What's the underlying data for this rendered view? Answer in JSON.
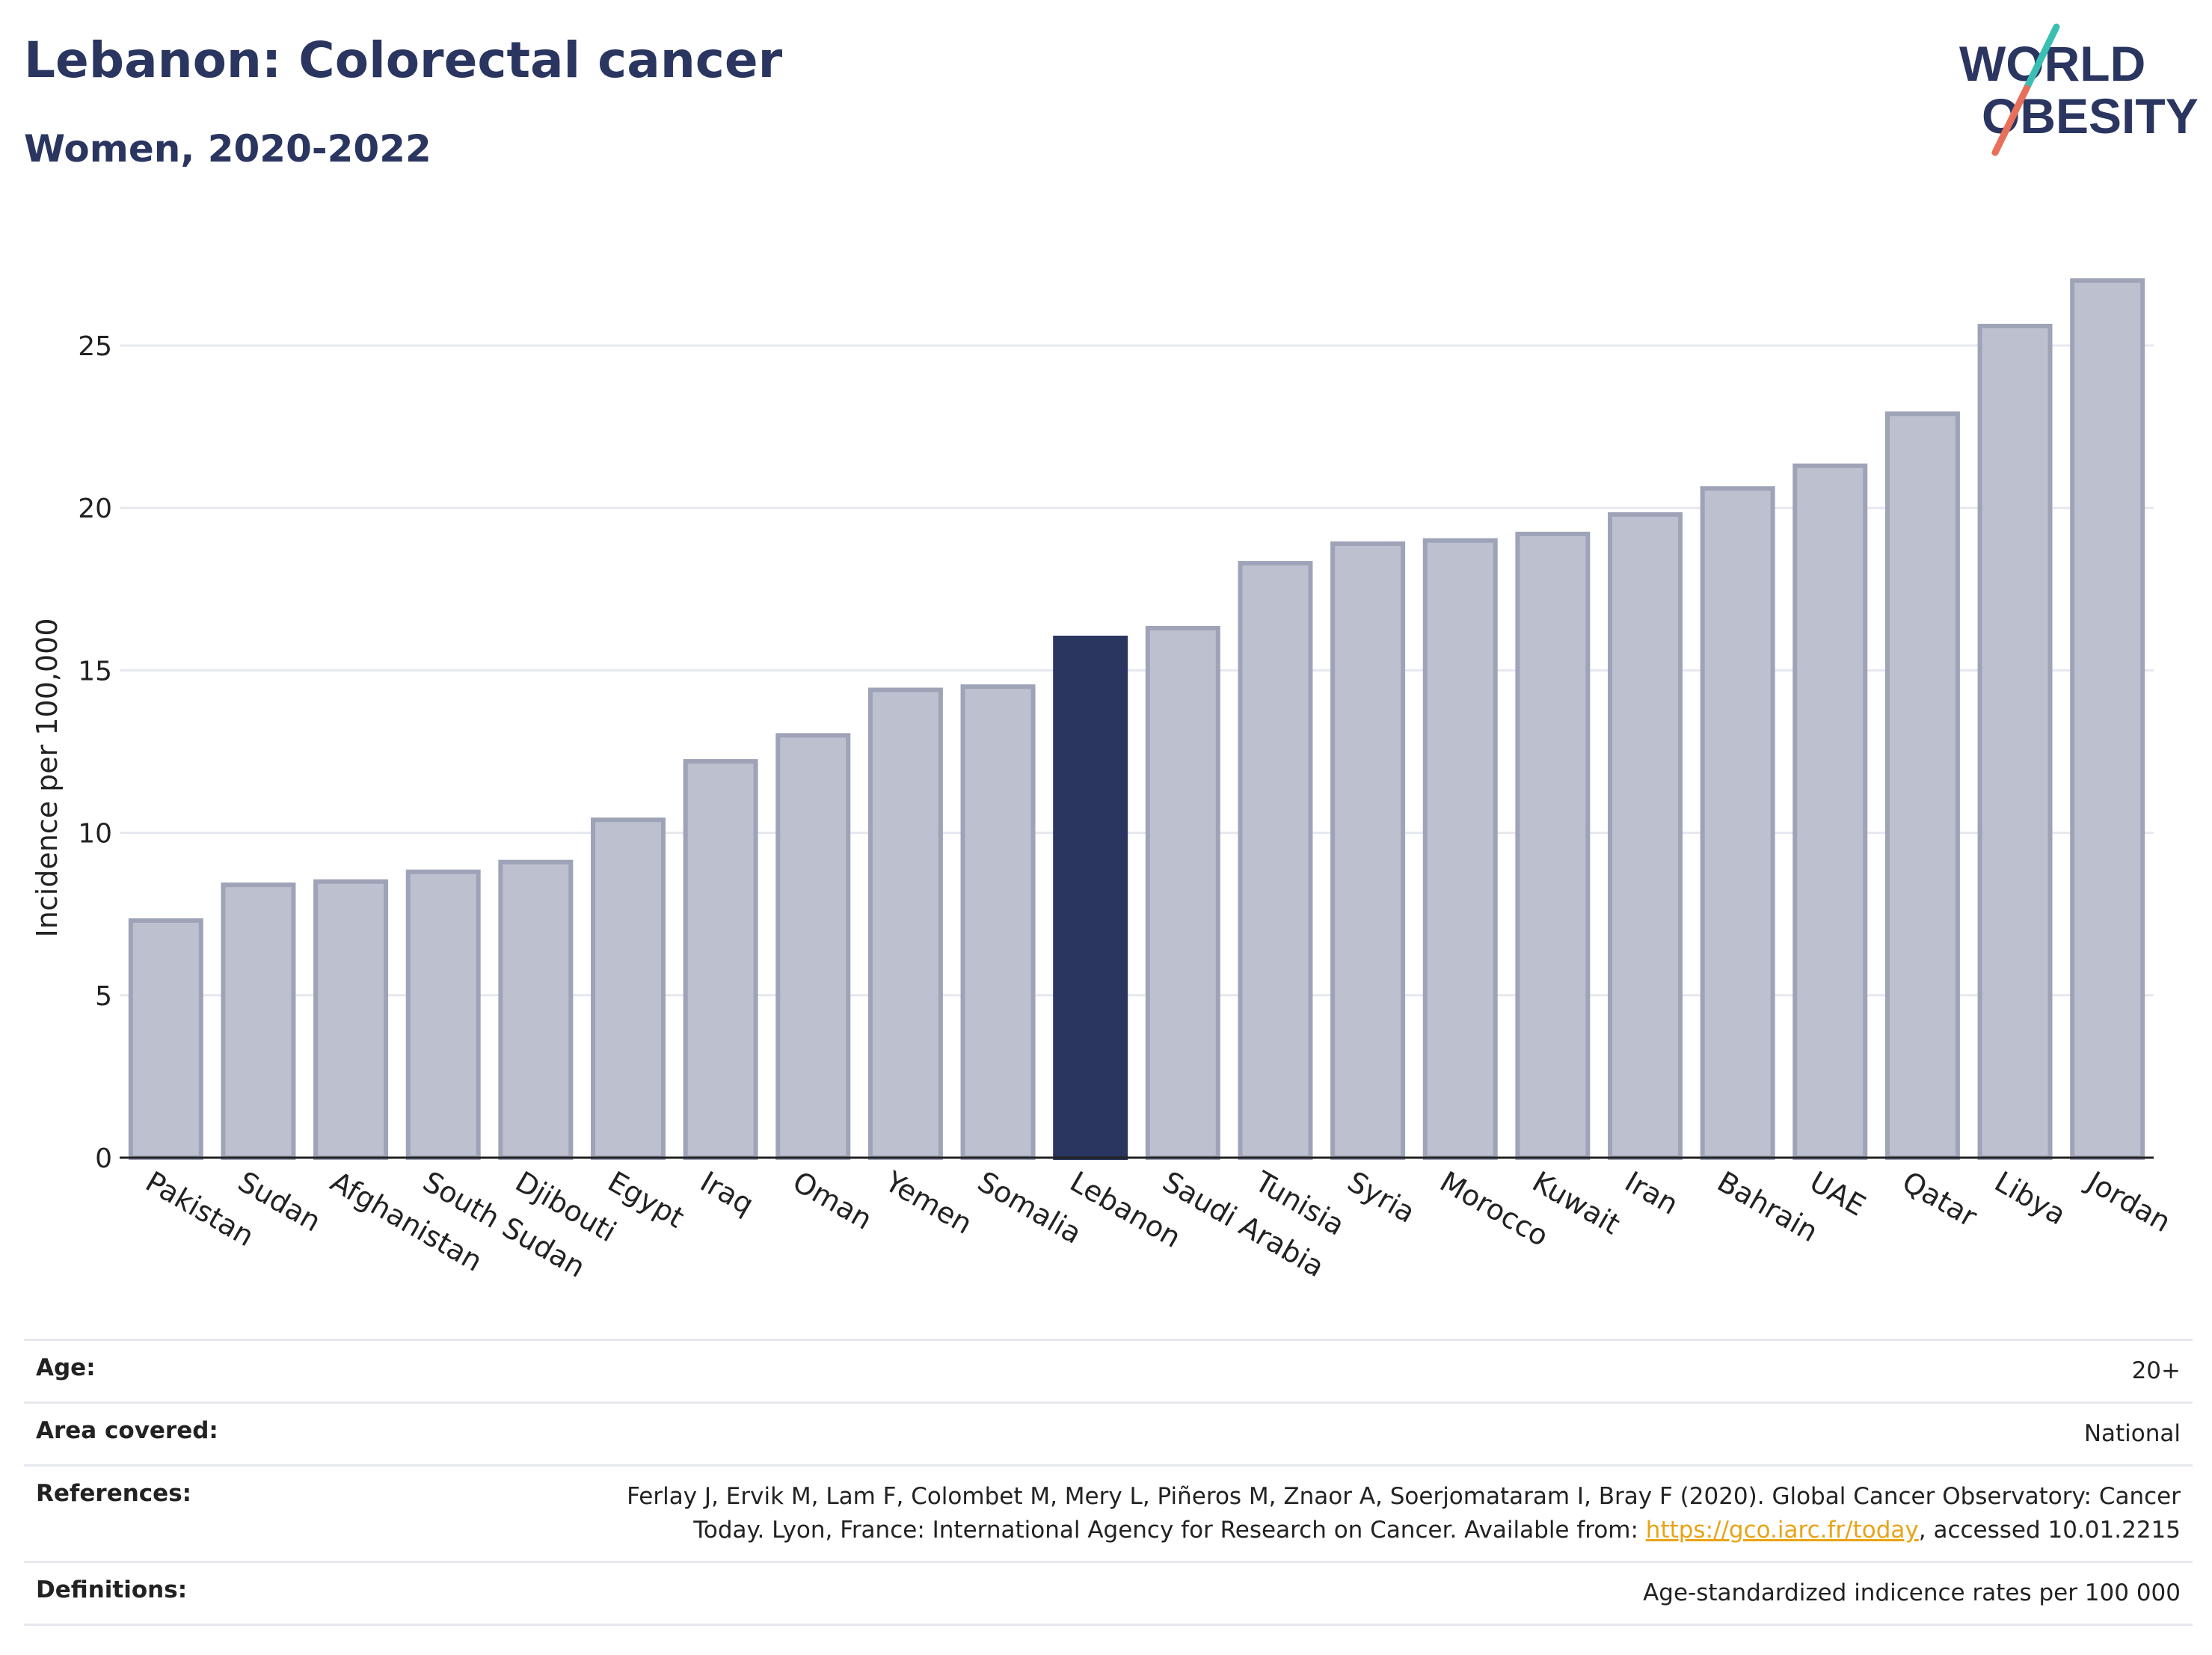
{
  "header": {
    "title": "Lebanon: Colorectal cancer",
    "subtitle": "Women, 2020-2022"
  },
  "logo": {
    "line1": "WORLD",
    "line2": "OBESITY",
    "colors": {
      "text": "#2a3560",
      "slash_top": "#3bbfb3",
      "slash_bottom": "#e8705a"
    }
  },
  "chart_data": {
    "type": "bar",
    "categories": [
      "Pakistan",
      "Sudan",
      "Afghanistan",
      "South Sudan",
      "Djibouti",
      "Egypt",
      "Iraq",
      "Oman",
      "Yemen",
      "Somalia",
      "Lebanon",
      "Saudi Arabia",
      "Tunisia",
      "Syria",
      "Morocco",
      "Kuwait",
      "Iran",
      "Bahrain",
      "UAE",
      "Qatar",
      "Libya",
      "Jordan"
    ],
    "values": [
      7.3,
      8.4,
      8.5,
      8.8,
      9.1,
      10.4,
      12.2,
      13.0,
      14.4,
      14.5,
      16.0,
      16.3,
      18.3,
      18.9,
      19.0,
      19.2,
      19.8,
      20.6,
      21.3,
      22.9,
      25.6,
      27.0
    ],
    "highlight": "Lebanon",
    "ylabel": "Incidence per 100,000",
    "xlabel": "",
    "ylim": [
      0,
      28.5
    ],
    "yticks": [
      0,
      5,
      10,
      15,
      20,
      25
    ],
    "grid": true,
    "colors": {
      "bar": "#bdc0ce",
      "bar_border": "#9ea3b8",
      "highlight": "#2a3560"
    }
  },
  "meta": {
    "rows": [
      {
        "label": "Age:",
        "value": "20+"
      },
      {
        "label": "Area covered:",
        "value": "National"
      },
      {
        "label": "References:",
        "value_pre": "Ferlay J, Ervik M, Lam F, Colombet M, Mery L, Piñeros M, Znaor A, Soerjomataram I, Bray F (2020). Global Cancer Observatory: Cancer Today. Lyon, France: International Agency for Research on Cancer. Available from: ",
        "link": "https://gco.iarc.fr/today",
        "value_post": ", accessed 10.01.2215"
      },
      {
        "label": "Definitions:",
        "value": "Age-standardized indicence rates per 100 000"
      }
    ]
  }
}
